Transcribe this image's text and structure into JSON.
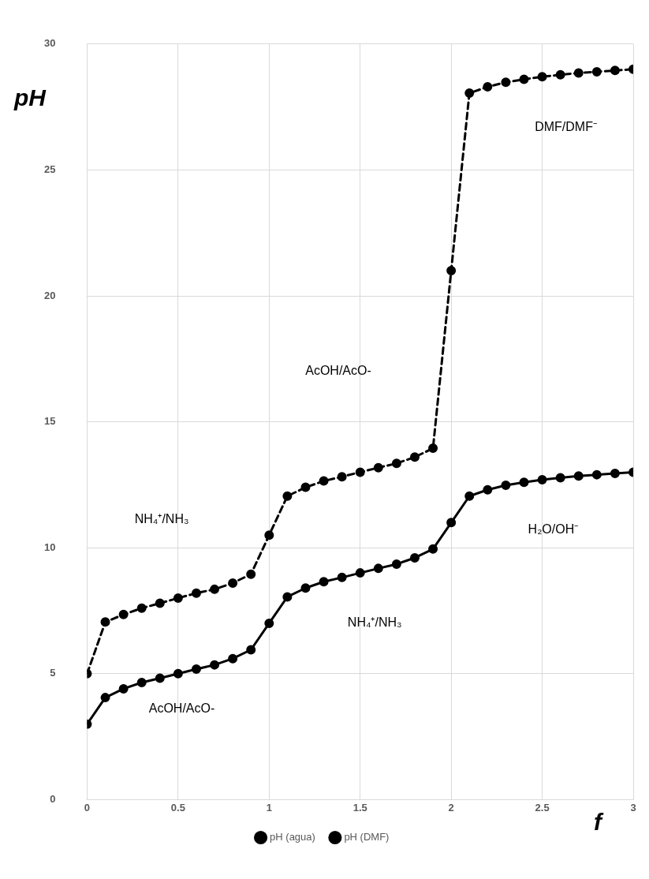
{
  "chart_data": {
    "type": "line",
    "xlabel": "f",
    "ylabel": "pH",
    "x": [
      0,
      0.1,
      0.2,
      0.3,
      0.4,
      0.5,
      0.6,
      0.7,
      0.8,
      0.9,
      1,
      1.1,
      1.2,
      1.3,
      1.4,
      1.5,
      1.6,
      1.7,
      1.8,
      1.9,
      2,
      2.1,
      2.2,
      2.3,
      2.4,
      2.5,
      2.6,
      2.7,
      2.8,
      2.9,
      3
    ],
    "series": [
      {
        "name": "pH (agua)",
        "color": "#000000",
        "line_style": "solid",
        "values": [
          3.0,
          4.05,
          4.4,
          4.65,
          4.82,
          5.0,
          5.18,
          5.35,
          5.6,
          5.95,
          7.0,
          8.05,
          8.4,
          8.65,
          8.82,
          9.0,
          9.18,
          9.35,
          9.6,
          9.95,
          11.0,
          12.05,
          12.3,
          12.48,
          12.6,
          12.7,
          12.78,
          12.85,
          12.9,
          12.95,
          13.0
        ]
      },
      {
        "name": "pH (DMF)",
        "color": "#000000",
        "line_style": "dashed",
        "values": [
          5.0,
          7.05,
          7.35,
          7.6,
          7.8,
          8.0,
          8.2,
          8.35,
          8.6,
          8.95,
          10.5,
          12.05,
          12.4,
          12.65,
          12.82,
          13.0,
          13.18,
          13.35,
          13.6,
          13.95,
          21.0,
          28.05,
          28.3,
          28.48,
          28.6,
          28.7,
          28.78,
          28.85,
          28.9,
          28.95,
          29.0
        ]
      }
    ],
    "xlim": [
      0,
      3
    ],
    "xticks": [
      0,
      0.5,
      1,
      1.5,
      2,
      2.5,
      3
    ],
    "ylim": [
      0,
      30
    ],
    "yticks": [
      0,
      5,
      10,
      15,
      20,
      25,
      30
    ],
    "grid": true,
    "legend": "bottom",
    "marker": "circle",
    "annotations": [
      "NH₄⁺/NH₃",
      "AcOH/AcO-",
      "AcOH/AcO-",
      "NH₄⁺/NH₃",
      "DMF/DMF⁻",
      "H₂O/OH⁻"
    ]
  }
}
